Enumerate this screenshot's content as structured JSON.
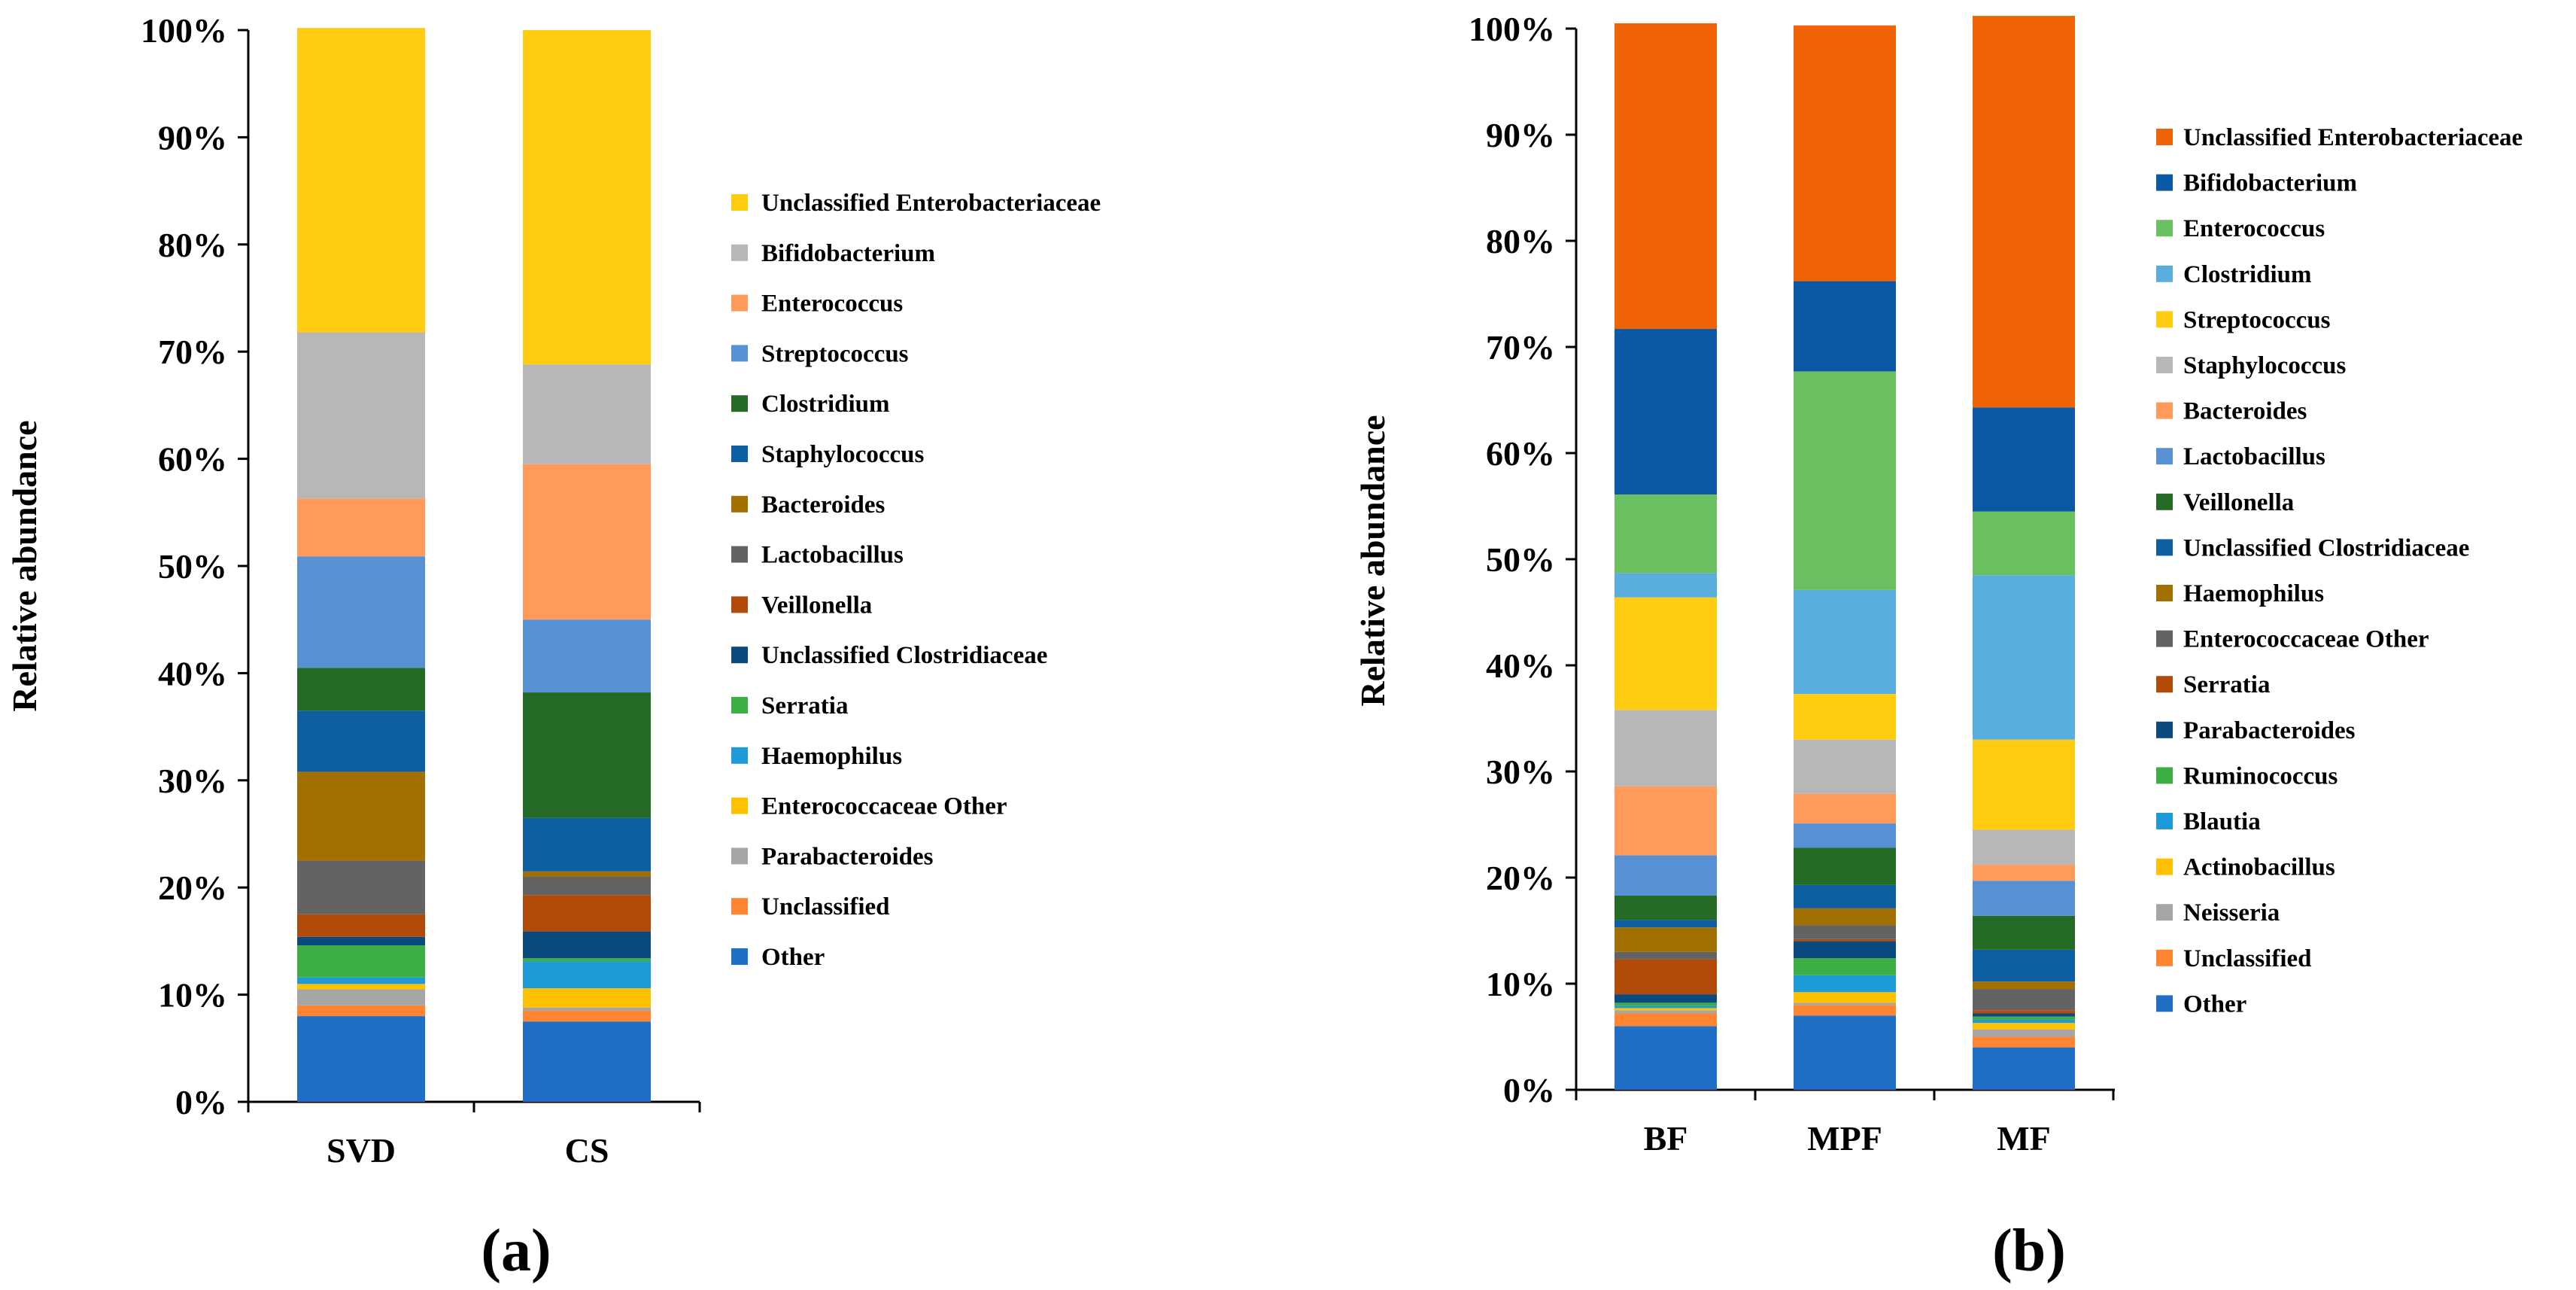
{
  "chart_data": [
    {
      "type": "bar",
      "stacked": true,
      "panel_label": "(a)",
      "ylabel": "Relative abundance",
      "ylim": [
        0,
        100
      ],
      "yticks": [
        "0%",
        "10%",
        "20%",
        "30%",
        "40%",
        "50%",
        "60%",
        "70%",
        "80%",
        "90%",
        "100%"
      ],
      "categories": [
        "SVD",
        "CS"
      ],
      "legend_position": "right",
      "series": [
        {
          "name": "Other",
          "color": "#1f6fc6",
          "values": [
            8.0,
            7.5
          ]
        },
        {
          "name": "Unclassified",
          "color": "#ff8533",
          "values": [
            1.0,
            1.0
          ]
        },
        {
          "name": "Parabacteroides",
          "color": "#a6a6a6",
          "values": [
            1.5,
            0.3
          ]
        },
        {
          "name": "Enterococcaceae Other",
          "color": "#ffc000",
          "values": [
            0.5,
            1.8
          ]
        },
        {
          "name": "Haemophilus",
          "color": "#1f9ad8",
          "values": [
            0.6,
            2.5
          ]
        },
        {
          "name": "Serratia",
          "color": "#3cae44",
          "values": [
            3.0,
            0.3
          ]
        },
        {
          "name": "Unclassified Clostridiaceae",
          "color": "#0a4a7e",
          "values": [
            0.8,
            2.5
          ]
        },
        {
          "name": "Veillonella",
          "color": "#b24a0a",
          "values": [
            2.1,
            3.4
          ]
        },
        {
          "name": "Lactobacillus",
          "color": "#636363",
          "values": [
            5.0,
            1.7
          ]
        },
        {
          "name": "Bacteroides",
          "color": "#a27000",
          "values": [
            8.3,
            0.5
          ]
        },
        {
          "name": "Staphylococcus",
          "color": "#0d5fa1",
          "values": [
            5.7,
            5.0
          ]
        },
        {
          "name": "Clostridium",
          "color": "#256b25",
          "values": [
            4.0,
            11.7
          ]
        },
        {
          "name": "Streptococcus",
          "color": "#5890d4",
          "values": [
            10.4,
            6.8
          ]
        },
        {
          "name": "Enterococcus",
          "color": "#ff9a5a",
          "values": [
            5.4,
            14.5
          ]
        },
        {
          "name": "Bifidobacterium",
          "color": "#b7b7b7",
          "values": [
            15.5,
            9.3
          ]
        },
        {
          "name": "Unclassified Enterobacteriaceae",
          "color": "#ffcc11",
          "values": [
            28.4,
            31.2
          ]
        }
      ]
    },
    {
      "type": "bar",
      "stacked": true,
      "panel_label": "(b)",
      "ylabel": "Relative abundance",
      "ylim": [
        0,
        100
      ],
      "yticks": [
        "0%",
        "10%",
        "20%",
        "30%",
        "40%",
        "50%",
        "60%",
        "70%",
        "80%",
        "90%",
        "100%"
      ],
      "categories": [
        "BF",
        "MPF",
        "MF"
      ],
      "legend_position": "right",
      "series": [
        {
          "name": "Other",
          "color": "#1f6fc6",
          "values": [
            6.0,
            7.0,
            4.0
          ]
        },
        {
          "name": "Unclassified",
          "color": "#ff8533",
          "values": [
            1.2,
            1.0,
            1.0
          ]
        },
        {
          "name": "Neisseria",
          "color": "#a6a6a6",
          "values": [
            0.3,
            0.2,
            0.7
          ]
        },
        {
          "name": "Actinobacillus",
          "color": "#ffc000",
          "values": [
            0.2,
            1.0,
            0.6
          ]
        },
        {
          "name": "Blautia",
          "color": "#1f9ad8",
          "values": [
            0.2,
            1.6,
            0.3
          ]
        },
        {
          "name": "Ruminococcus",
          "color": "#3cae44",
          "values": [
            0.3,
            1.6,
            0.3
          ]
        },
        {
          "name": "Parabacteroides",
          "color": "#0a4a7e",
          "values": [
            0.8,
            1.6,
            0.3
          ]
        },
        {
          "name": "Serratia",
          "color": "#b24a0a",
          "values": [
            3.3,
            0.2,
            0.3
          ]
        },
        {
          "name": "Enterococcaceae Other",
          "color": "#636363",
          "values": [
            0.7,
            1.3,
            2.0
          ]
        },
        {
          "name": "Haemophilus",
          "color": "#a27000",
          "values": [
            2.3,
            1.6,
            0.7
          ]
        },
        {
          "name": "Unclassified Clostridiaceae",
          "color": "#0d5fa1",
          "values": [
            0.7,
            2.2,
            3.0
          ]
        },
        {
          "name": "Veillonella",
          "color": "#256b25",
          "values": [
            2.3,
            3.5,
            3.2
          ]
        },
        {
          "name": "Lactobacillus",
          "color": "#5890d4",
          "values": [
            3.8,
            2.3,
            3.3
          ]
        },
        {
          "name": "Bacteroides",
          "color": "#ff9a5a",
          "values": [
            6.5,
            2.8,
            1.5
          ]
        },
        {
          "name": "Staphylococcus",
          "color": "#b7b7b7",
          "values": [
            7.2,
            5.1,
            3.3
          ]
        },
        {
          "name": "Streptococcus",
          "color": "#ffcc11",
          "values": [
            10.6,
            4.3,
            8.5
          ]
        },
        {
          "name": "Clostridium",
          "color": "#5aaede",
          "values": [
            2.3,
            9.8,
            15.5
          ]
        },
        {
          "name": "Enterococcus",
          "color": "#6abf60",
          "values": [
            7.4,
            20.6,
            6.0
          ]
        },
        {
          "name": "Bifidobacterium",
          "color": "#0b59a6",
          "values": [
            15.6,
            8.5,
            9.8
          ]
        },
        {
          "name": "Unclassified Enterobacteriaceae",
          "color": "#ef6305",
          "values": [
            28.8,
            24.1,
            36.9
          ]
        }
      ]
    }
  ]
}
